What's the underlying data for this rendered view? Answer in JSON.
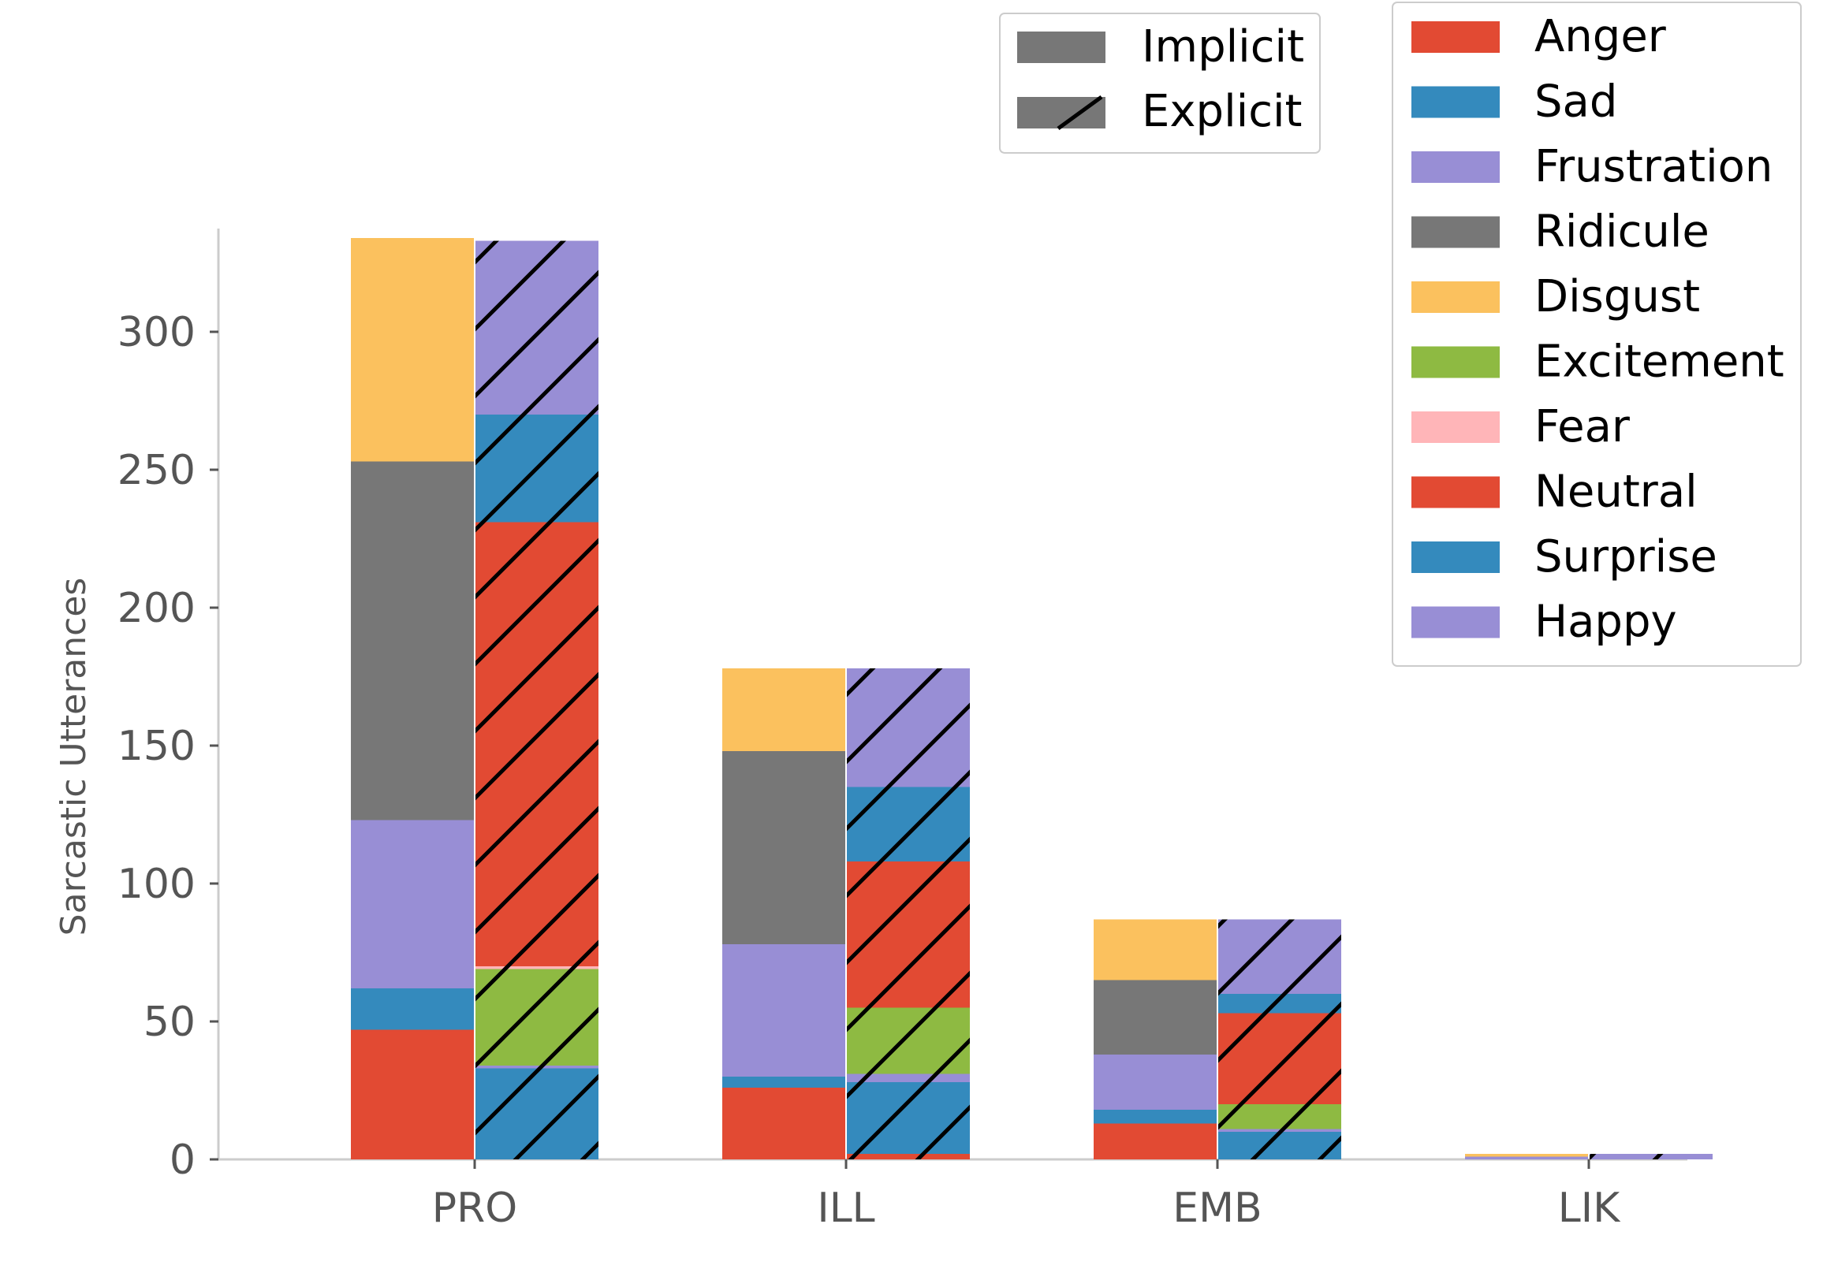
{
  "chart_data": {
    "type": "bar",
    "stacked": true,
    "title": "",
    "xlabel": "",
    "ylabel": "Sarcastic Utterances",
    "categories": [
      "PRO",
      "ILL",
      "EMB",
      "LIK"
    ],
    "ylim": [
      0,
      335
    ],
    "yticks": [
      0,
      50,
      100,
      150,
      200,
      250,
      300
    ],
    "grid": false,
    "groups": [
      {
        "name": "Implicit",
        "pattern": "solid"
      },
      {
        "name": "Explicit",
        "pattern": "hatched"
      }
    ],
    "emotions": [
      {
        "name": "Anger",
        "color": "#E24A33"
      },
      {
        "name": "Sad",
        "color": "#348ABD"
      },
      {
        "name": "Frustration",
        "color": "#988ED5"
      },
      {
        "name": "Ridicule",
        "color": "#777777"
      },
      {
        "name": "Disgust",
        "color": "#FBC15E"
      },
      {
        "name": "Excitement",
        "color": "#8EBA42"
      },
      {
        "name": "Fear",
        "color": "#FFB5B8"
      },
      {
        "name": "Neutral",
        "color": "#E24A33"
      },
      {
        "name": "Surprise",
        "color": "#348ABD"
      },
      {
        "name": "Happy",
        "color": "#988ED5"
      }
    ],
    "implicit_series": [
      {
        "name": "Anger",
        "values": [
          47,
          26,
          13,
          0
        ]
      },
      {
        "name": "Sad",
        "values": [
          15,
          4,
          5,
          0
        ]
      },
      {
        "name": "Frustration",
        "values": [
          61,
          48,
          20,
          1
        ]
      },
      {
        "name": "Ridicule",
        "values": [
          130,
          70,
          27,
          0
        ]
      },
      {
        "name": "Disgust",
        "values": [
          81,
          30,
          22,
          1
        ]
      }
    ],
    "explicit_series": [
      {
        "name": "Anger",
        "values": [
          0,
          2,
          0,
          0
        ]
      },
      {
        "name": "Sad",
        "values": [
          0,
          0,
          0,
          0
        ]
      },
      {
        "name": "Frustration",
        "values": [
          0,
          0,
          0,
          0
        ]
      },
      {
        "name": "Ridicule",
        "values": [
          0,
          0,
          0,
          0
        ]
      },
      {
        "name": "Disgust",
        "values": [
          0,
          0,
          0,
          0
        ]
      },
      {
        "name": "Surprise",
        "values": [
          33,
          26,
          10,
          0
        ]
      },
      {
        "name": "Happy",
        "values": [
          1,
          3,
          1,
          0
        ]
      },
      {
        "name": "Excitement",
        "values": [
          35,
          24,
          9,
          0
        ]
      },
      {
        "name": "Fear",
        "values": [
          1,
          0,
          0,
          0
        ]
      },
      {
        "name": "Neutral",
        "values": [
          161,
          53,
          33,
          0
        ]
      },
      {
        "name": "Surprise",
        "values": [
          39,
          27,
          7,
          0
        ]
      },
      {
        "name": "Happy",
        "values": [
          63,
          43,
          27,
          2
        ]
      }
    ],
    "legend_groups_placement": "top-center",
    "legend_emotions_placement": "top-right"
  }
}
